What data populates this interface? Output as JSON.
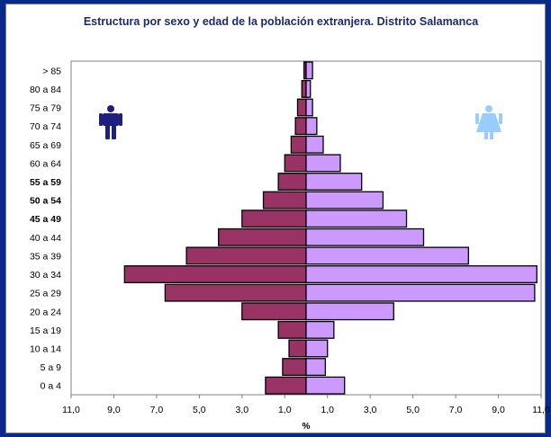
{
  "chart_data": {
    "type": "bar",
    "orientation": "horizontal",
    "title": "Estructura por sexo y edad de la población extranjera. Distrito Salamanca",
    "xlabel": "%",
    "ylabel": "",
    "categories": [
      "0 a 4",
      "5 a 9",
      "10 a 14",
      "15 a 19",
      "20 a 24",
      "25 a 29",
      "30 a 34",
      "35 a 39",
      "40 a 44",
      "45 a 49",
      "50 a 54",
      "55 a 59",
      "60 a 64",
      "65 a 69",
      "70 a 74",
      "75 a 79",
      "80 a 84",
      "> 85"
    ],
    "bold_categories": [
      "45 a 49",
      "50 a 54",
      "55 a 59"
    ],
    "series": [
      {
        "values": [
          1.9,
          1.1,
          0.8,
          1.3,
          3.0,
          6.6,
          8.5,
          5.6,
          4.1,
          3.0,
          2.0,
          1.3,
          1.0,
          0.7,
          0.5,
          0.4,
          0.2,
          0.1
        ],
        "color": "#993366",
        "side": "left",
        "icon": "male-figure-icon",
        "icon_color": "#1f1f7f"
      },
      {
        "values": [
          1.8,
          0.9,
          1.0,
          1.3,
          4.1,
          10.7,
          10.8,
          7.6,
          5.5,
          4.7,
          3.6,
          2.6,
          1.6,
          0.8,
          0.5,
          0.3,
          0.2,
          0.3
        ],
        "color": "#cc99ff",
        "side": "right",
        "icon": "female-figure-icon",
        "icon_color": "#99ccff"
      }
    ],
    "xlim": [
      -11,
      11
    ],
    "xticks": [
      "11,0",
      "9,0",
      "7,0",
      "5,0",
      "3,0",
      "1,0",
      "1,0",
      "3,0",
      "5,0",
      "7,0",
      "9,0",
      "11,0"
    ],
    "grid": false,
    "legend": "none"
  }
}
